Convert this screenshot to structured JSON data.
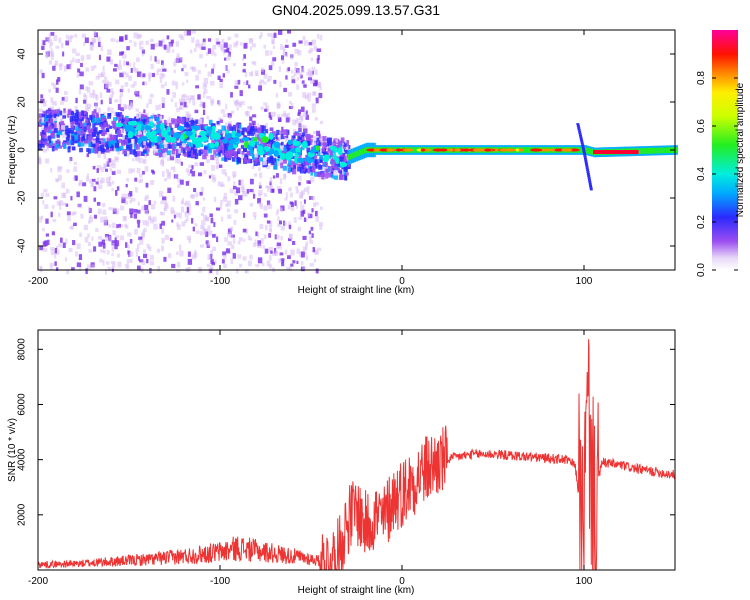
{
  "figure": {
    "title": "GN04.2025.099.13.57.G31"
  },
  "chart_data": [
    {
      "type": "heatmap",
      "xlabel": "Height of straight line (km)",
      "ylabel": "Frequency (Hz)",
      "xlim": [
        -200,
        150
      ],
      "ylim": [
        -50,
        50
      ],
      "xticks": [
        -200,
        -100,
        0,
        100
      ],
      "yticks": [
        -40,
        -20,
        0,
        20,
        40
      ],
      "colorbar": {
        "label": "Normalized spectral amplitude",
        "range": [
          0,
          1
        ],
        "ticks": [
          0.0,
          0.2,
          0.4,
          0.6,
          0.8
        ],
        "colormap": "rainbow (white-purple-blue-cyan-green-yellow-orange-red-magenta)"
      },
      "ridge": [
        {
          "x": -200,
          "y": 10
        },
        {
          "x": -180,
          "y": 9
        },
        {
          "x": -160,
          "y": 8
        },
        {
          "x": -140,
          "y": 7
        },
        {
          "x": -120,
          "y": 6
        },
        {
          "x": -100,
          "y": 5
        },
        {
          "x": -80,
          "y": 3
        },
        {
          "x": -60,
          "y": 0
        },
        {
          "x": -45,
          "y": -2
        },
        {
          "x": -30,
          "y": -3
        },
        {
          "x": -20,
          "y": 0
        },
        {
          "x": 0,
          "y": 0
        },
        {
          "x": 50,
          "y": 0
        },
        {
          "x": 95,
          "y": 0
        },
        {
          "x": 100,
          "y": 0
        },
        {
          "x": 105,
          "y": -1
        },
        {
          "x": 150,
          "y": 0
        }
      ],
      "grid": false
    },
    {
      "type": "line",
      "xlabel": "Height of straight line (km)",
      "ylabel": "SNR (10 * v/v)",
      "xlim": [
        -200,
        150
      ],
      "ylim": [
        0,
        8700
      ],
      "xticks": [
        -200,
        -100,
        0,
        100
      ],
      "yticks": [
        2000,
        4000,
        6000,
        8000
      ],
      "color": "#ee3333",
      "series": [
        {
          "x": [
            -200,
            -180,
            -160,
            -140,
            -120,
            -100,
            -90,
            -80,
            -70,
            -60,
            -50,
            -40,
            -35,
            -30,
            -25,
            -20,
            -15,
            -10,
            -5,
            0,
            10,
            20,
            30,
            40,
            50,
            60,
            70,
            80,
            90,
            95,
            100,
            102,
            105,
            110,
            120,
            130,
            140,
            150
          ],
          "values": [
            200,
            220,
            300,
            380,
            500,
            650,
            800,
            700,
            600,
            500,
            400,
            250,
            600,
            1800,
            2200,
            1600,
            2000,
            1800,
            2600,
            2800,
            3500,
            3900,
            4100,
            4200,
            4200,
            4150,
            4100,
            4050,
            4000,
            3800,
            1500,
            6000,
            2500,
            3900,
            3800,
            3650,
            3550,
            3450
          ]
        }
      ],
      "grid": false
    }
  ]
}
